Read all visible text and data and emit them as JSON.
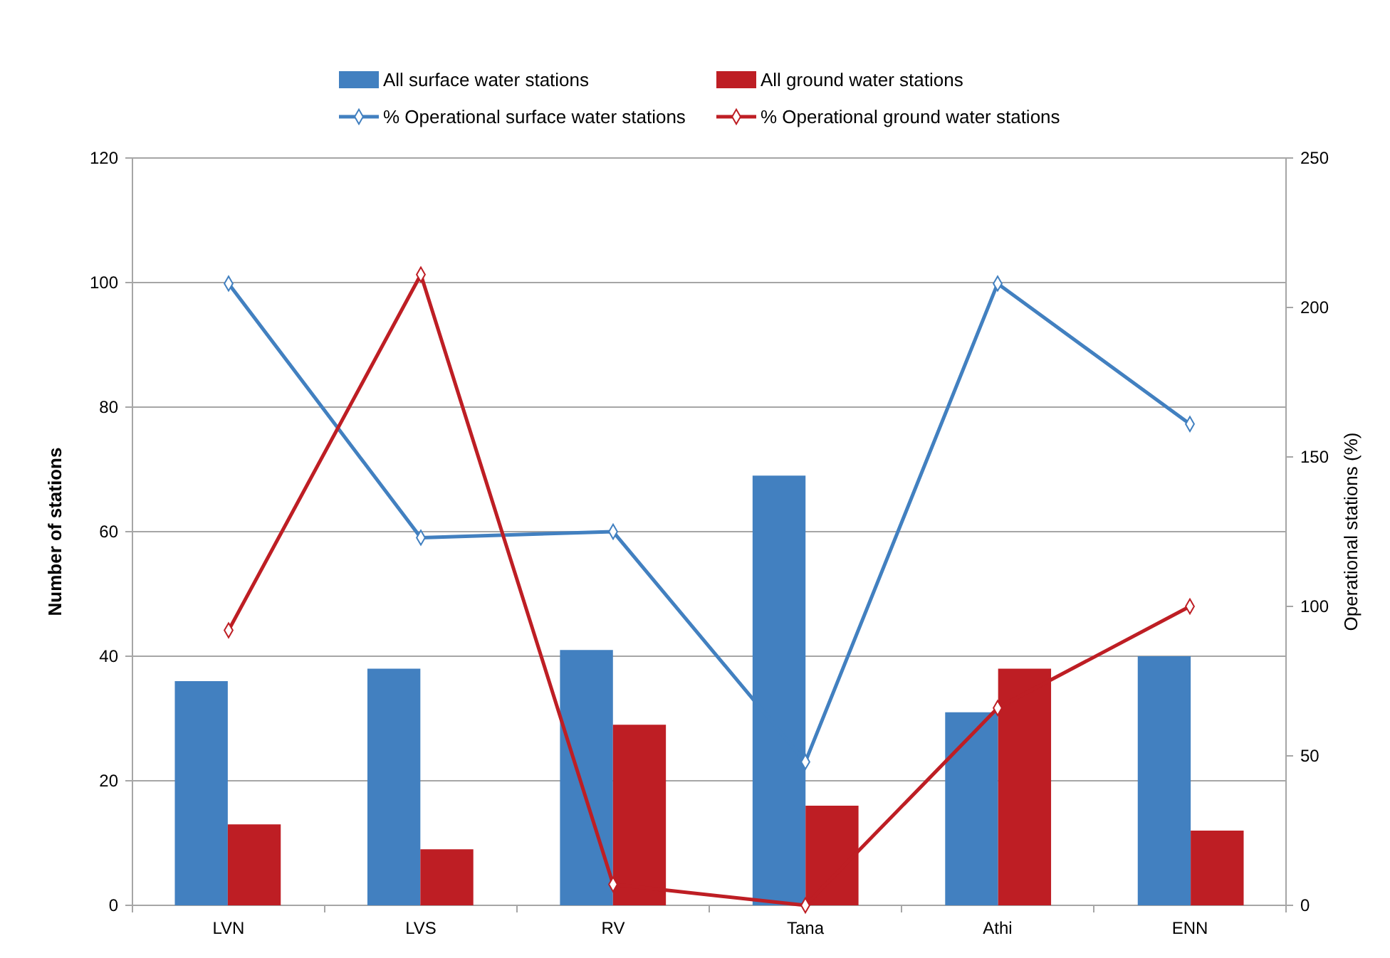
{
  "chart_data": {
    "type": "bar",
    "ylabel": "Number of stations",
    "y2label": "Operational stations (%)",
    "categories": [
      "LVN",
      "LVS",
      "RV",
      "Tana",
      "Athi",
      "ENN"
    ],
    "series": [
      {
        "name": "All surface water stations",
        "color": "#4280c0",
        "values": [
          36,
          38,
          41,
          69,
          31,
          40
        ]
      },
      {
        "name": "All ground water stations",
        "color": "#be1e24",
        "values": [
          13,
          9,
          29,
          16,
          38,
          12
        ]
      },
      {
        "name": "% Operational surface water stations",
        "type": "line",
        "axis": "y2",
        "color": "#4280c0",
        "values": [
          208,
          123,
          125,
          48,
          208,
          161
        ]
      },
      {
        "name": "% Operational ground water stations",
        "type": "line",
        "axis": "y2",
        "color": "#be1e24",
        "values": [
          92,
          211,
          7,
          0,
          66,
          100
        ]
      }
    ],
    "ylim": [
      0,
      120
    ],
    "yticks": [
      0,
      20,
      40,
      60,
      80,
      100,
      120
    ],
    "y2lim": [
      0,
      250
    ],
    "y2ticks": [
      0,
      50,
      100,
      150,
      200,
      250
    ],
    "grid": "y",
    "legend": "top",
    "marker": "diamond",
    "line_style": "solid"
  }
}
